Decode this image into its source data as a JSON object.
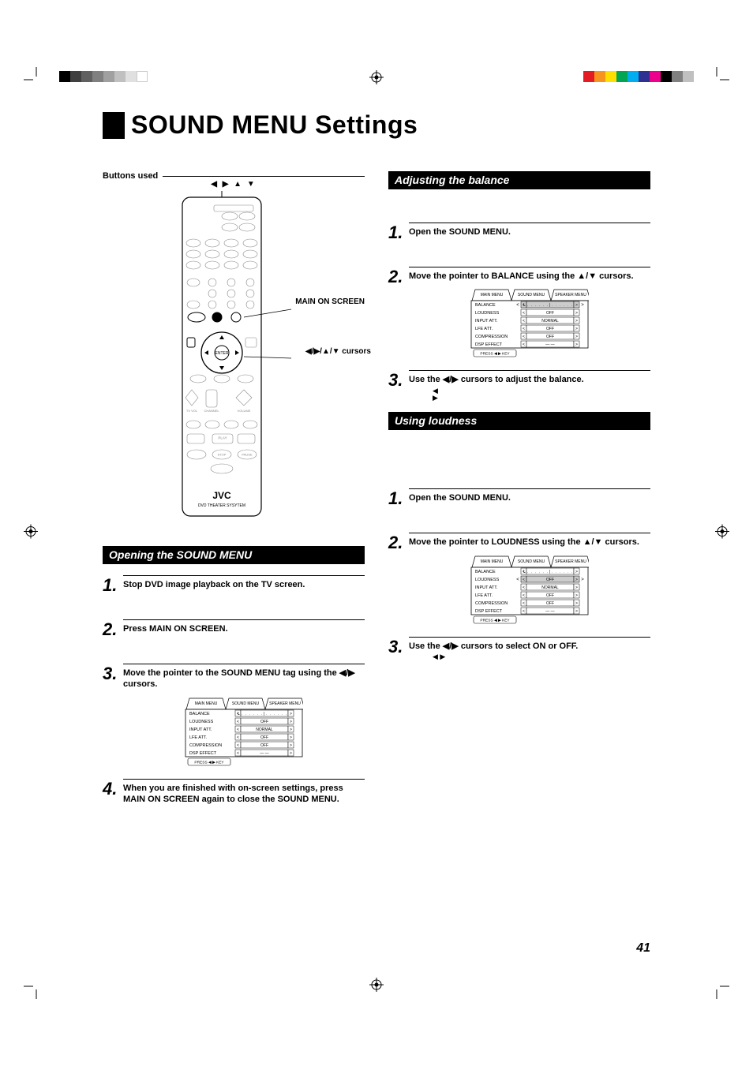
{
  "page_number": "41",
  "title": "SOUND MENU Settings",
  "buttons_used_label": "Buttons used",
  "callouts": {
    "top_arrows": "◀ ▶ ▲ ▼",
    "main_on_screen": "MAIN ON SCREEN",
    "cursors": "◀/▶/▲/▼ cursors"
  },
  "remote_brand": "JVC",
  "remote_sub": "DVD THEATER SYSYTEM",
  "sections": {
    "opening": {
      "header": "Opening the SOUND MENU",
      "steps": [
        "Stop DVD image playback on the TV screen.",
        "Press MAIN ON SCREEN.",
        "Move the pointer to the SOUND MENU tag using the ◀/▶ cursors.",
        "When you are finished with on-screen settings, press MAIN ON SCREEN again to close the SOUND MENU."
      ]
    },
    "balance": {
      "header": "Adjusting the balance",
      "steps": [
        "Open the SOUND MENU.",
        "Move the pointer to BALANCE using the ▲/▼ cursors.",
        "Use the ◀/▶ cursors to adjust the balance."
      ],
      "cursor_glyphs": "◀\n▶"
    },
    "loudness": {
      "header": "Using loudness",
      "steps": [
        "Open the SOUND MENU.",
        "Move the pointer to LOUDNESS using the ▲/▼ cursors.",
        "Use the ◀/▶ cursors to select ON or OFF."
      ],
      "cursor_glyphs": "◀ ▶"
    }
  },
  "menu_diagram": {
    "tabs": [
      "MAIN MENU",
      "SOUND MENU",
      "SPEAKER MENU"
    ],
    "active_tab_index": 1,
    "rows": [
      {
        "label": "BALANCE",
        "value": "L﹒﹒﹒﹒﹒﹒|﹒﹒﹒﹒﹒﹒R"
      },
      {
        "label": "LOUDNESS",
        "value": "OFF"
      },
      {
        "label": "INPUT ATT.",
        "value": "NORMAL"
      },
      {
        "label": "LFE ATT.",
        "value": "OFF"
      },
      {
        "label": "COMPRESSION",
        "value": "OFF"
      },
      {
        "label": "DSP EFFECT",
        "value": "— —"
      }
    ],
    "footer": "PRESS ◀ ▶ KEY",
    "highlight": {
      "none": -1,
      "balance": 0,
      "loudness": 1
    }
  },
  "color_bars": {
    "left": [
      "#000000",
      "#404040",
      "#606060",
      "#808080",
      "#a0a0a0",
      "#c0c0c0",
      "#e0e0e0",
      "#ffffff"
    ],
    "right": [
      "#e31b23",
      "#f7941d",
      "#ffde00",
      "#00a651",
      "#00aeef",
      "#2e3192",
      "#ec008c",
      "#000000",
      "#808080",
      "#c0c0c0"
    ]
  },
  "colors": {
    "text": "#000000",
    "bg": "#ffffff",
    "highlight_bg": "#d0d0d0"
  }
}
